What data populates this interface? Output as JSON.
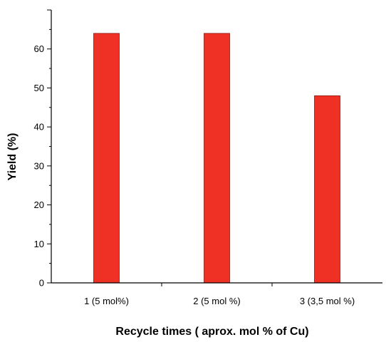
{
  "chart_data": {
    "type": "bar",
    "title": "",
    "xlabel": "Recycle times ( aprox. mol % of Cu)",
    "ylabel": "Yield (%)",
    "categories": [
      "1 (5 mol%)",
      "2 (5 mol %)",
      "3 (3,5 mol %)"
    ],
    "values": [
      64,
      64,
      48
    ],
    "ylim": [
      0,
      70
    ],
    "yticks": [
      0,
      10,
      20,
      30,
      40,
      50,
      60
    ],
    "grid": false,
    "legend": "none",
    "bar_color": "#ee3124",
    "bar_edge_color": "#8c1a12"
  }
}
